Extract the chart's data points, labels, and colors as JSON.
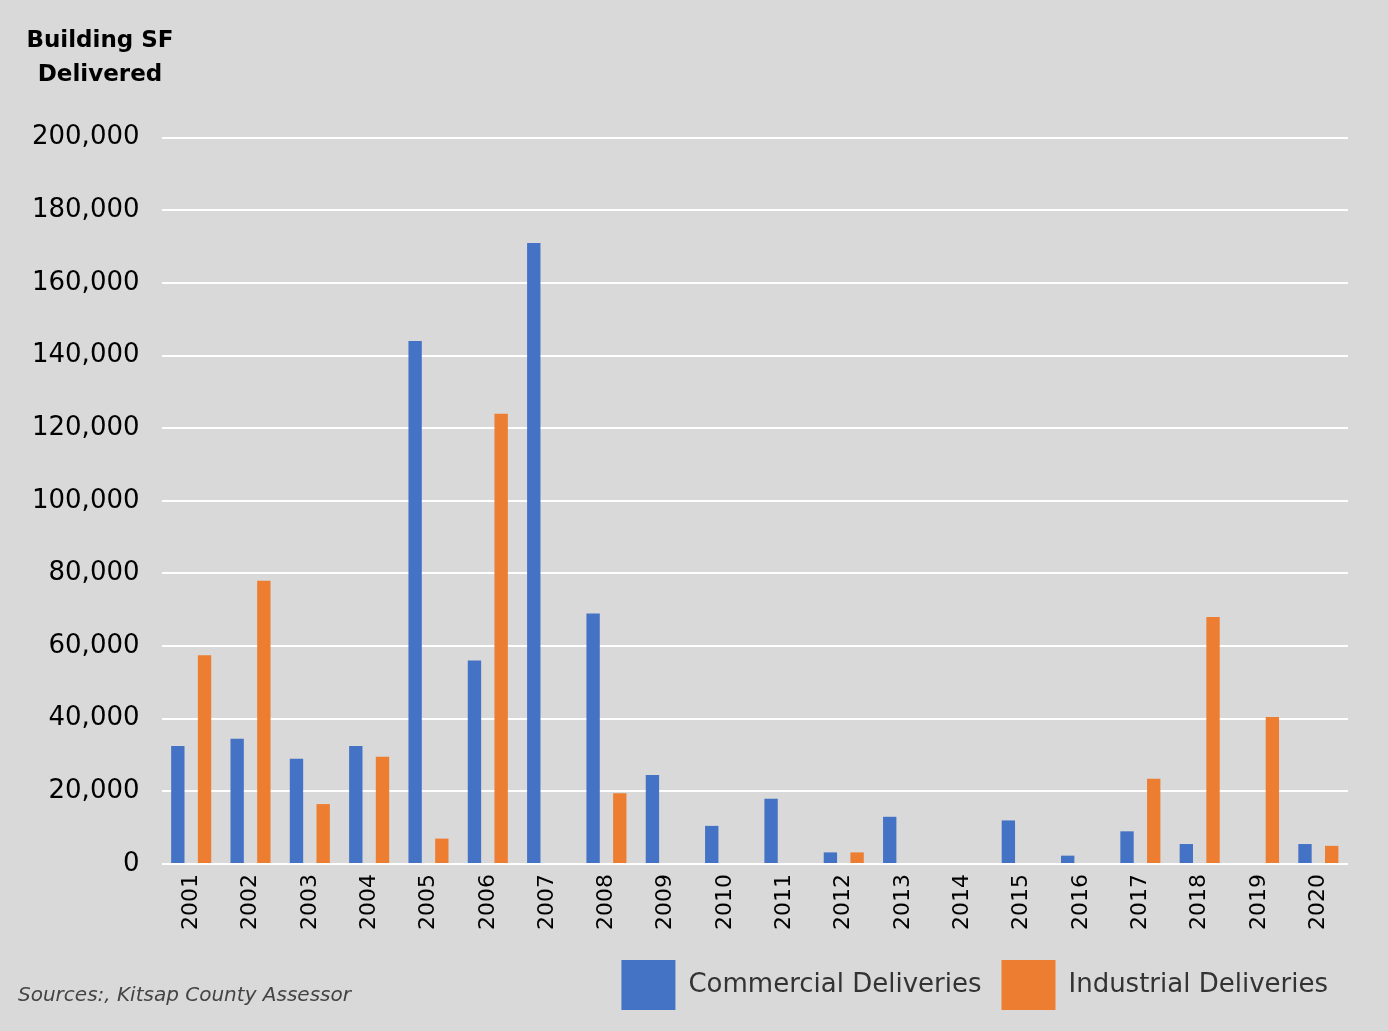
{
  "chart_data": {
    "type": "bar",
    "ylabel": "Building SF Delivered",
    "categories": [
      "2001",
      "2002",
      "2003",
      "2004",
      "2005",
      "2006",
      "2007",
      "2008",
      "2009",
      "2010",
      "2011",
      "2012",
      "2013",
      "2014",
      "2015",
      "2016",
      "2017",
      "2018",
      "2019",
      "2020"
    ],
    "series": [
      {
        "name": "Commercial Deliveries",
        "color": "#4472c4",
        "values": [
          32500,
          34500,
          29000,
          32500,
          144000,
          56000,
          171000,
          69000,
          24500,
          10500,
          18000,
          3200,
          13000,
          null,
          12000,
          2300,
          9000,
          5500,
          null,
          5500
        ]
      },
      {
        "name": "Industrial Deliveries",
        "color": "#ed7d31",
        "values": [
          57500,
          78000,
          16500,
          29500,
          7000,
          124000,
          null,
          19500,
          null,
          null,
          null,
          3200,
          null,
          null,
          null,
          null,
          23500,
          68000,
          40500,
          5000
        ]
      }
    ],
    "ylim": [
      0,
      200000
    ],
    "yticks": [
      0,
      {
        "value": 20000,
        "label": "20,000"
      },
      {
        "value": 40000,
        "label": "40,000"
      },
      {
        "value": 60000,
        "label": "60,000"
      },
      {
        "value": 80000,
        "label": "80,000"
      },
      {
        "value": 100000,
        "label": "100,000"
      },
      {
        "value": 120000,
        "label": "120,000"
      },
      {
        "value": 140000,
        "label": "140,000"
      },
      {
        "value": 160000,
        "label": "160,000"
      },
      {
        "value": 180000,
        "label": "180,000"
      },
      {
        "value": 200000,
        "label": "200,000"
      }
    ],
    "grid": "y",
    "legend": "bottom right",
    "annotations": [
      "Sources:, Kitsap County Assessor"
    ]
  }
}
